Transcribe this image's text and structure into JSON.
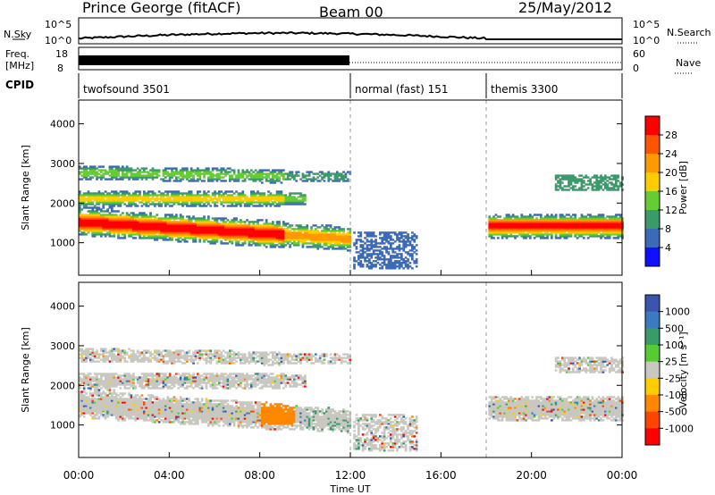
{
  "header": {
    "station": "Prince George (fitACF)",
    "beam": "Beam 00",
    "date": "25/May/2012"
  },
  "panels_top": {
    "nsky_label": "N.Sky",
    "nsky_ticks": [
      "10^5",
      "10^0"
    ],
    "nsearch_label": "N.Search",
    "freq_label_1": "Freq.",
    "freq_label_2": "[MHz]",
    "freq_ticks": [
      "18",
      "8"
    ],
    "nave_label": "Nave",
    "nave_ticks": [
      "60",
      "0"
    ],
    "cpid_label": "CPID"
  },
  "cpid_segments": [
    {
      "label": "twofsound 3501",
      "start_hour": 0,
      "end_hour": 12
    },
    {
      "label": "normal (fast) 151",
      "start_hour": 12,
      "end_hour": 18
    },
    {
      "label": "themis 3300",
      "start_hour": 18,
      "end_hour": 24
    }
  ],
  "chart_data": [
    {
      "type": "heatmap",
      "ylabel": "Slant Range [km]",
      "xlabel": "Time UT",
      "ylim": [
        180,
        4600
      ],
      "xlim": [
        0,
        24
      ],
      "x_ticks": [
        "00:00",
        "04:00",
        "08:00",
        "12:00",
        "16:00",
        "20:00",
        "00:00"
      ],
      "y_ticks": [
        1000,
        2000,
        3000,
        4000
      ],
      "colorbar": {
        "label": "Power [dB]",
        "ticks": [
          "28",
          "24",
          "20",
          "16",
          "12",
          "8",
          "4"
        ],
        "colors": [
          "#ff0000",
          "#ff5500",
          "#ff9900",
          "#ffcc00",
          "#66cc33",
          "#3a9a6a",
          "#3a6ab8",
          "#1010ff"
        ]
      }
    },
    {
      "type": "heatmap",
      "ylabel": "Slant Range [km]",
      "xlabel": "Time UT",
      "ylim": [
        180,
        4600
      ],
      "xlim": [
        0,
        24
      ],
      "x_ticks": [
        "00:00",
        "04:00",
        "08:00",
        "12:00",
        "16:00",
        "20:00",
        "00:00"
      ],
      "y_ticks": [
        1000,
        2000,
        3000,
        4000
      ],
      "colorbar": {
        "label": "Velocity [m s⁻¹]",
        "ticks": [
          "1000",
          "500",
          "100",
          "25",
          "-25",
          "-100",
          "-500",
          "-1000"
        ],
        "colors": [
          "#3a55b0",
          "#3a7abf",
          "#3a9a6a",
          "#55cc33",
          "#c8c8c0",
          "#ffcc00",
          "#ff8800",
          "#ff4400",
          "#ff0000"
        ]
      }
    }
  ]
}
